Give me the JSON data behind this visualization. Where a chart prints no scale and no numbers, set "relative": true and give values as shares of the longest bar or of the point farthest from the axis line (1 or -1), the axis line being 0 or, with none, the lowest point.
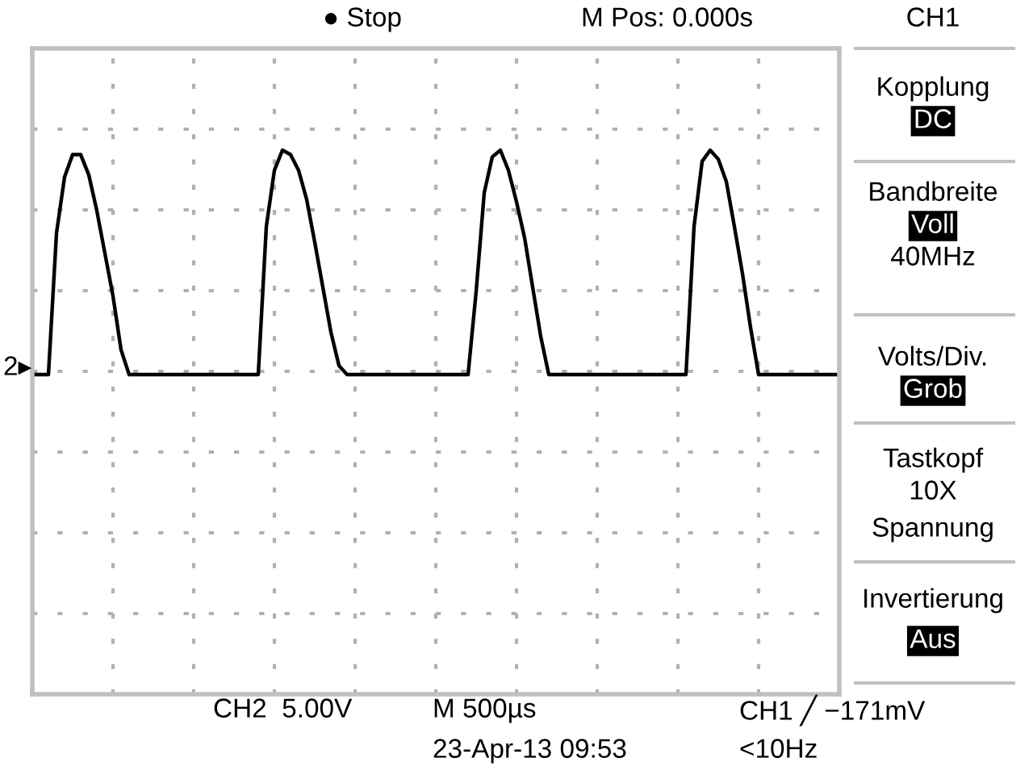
{
  "chart_data": {
    "type": "line",
    "relative": true,
    "grid": true,
    "tick_labels": false,
    "legend": false,
    "marker": "none",
    "line_style": "solid",
    "categories": [
      null,
      null,
      null,
      null,
      null,
      null,
      null,
      null,
      null,
      null,
      null,
      null,
      null,
      null,
      null,
      null,
      null,
      null,
      null,
      null,
      null,
      null,
      null,
      null,
      null,
      null,
      null,
      null,
      null,
      null,
      null,
      null,
      null,
      null,
      null,
      null,
      null,
      null,
      null,
      null,
      null,
      null,
      null,
      null,
      null,
      null,
      null,
      null,
      null,
      null,
      null,
      null,
      null,
      null,
      null,
      null,
      null,
      null,
      null,
      null,
      null,
      null,
      null,
      null,
      null,
      null,
      null,
      null,
      null,
      null,
      null,
      null,
      null,
      null,
      null,
      null,
      null,
      null,
      null,
      null,
      null,
      null,
      null,
      null,
      null,
      null,
      null,
      null,
      null,
      null,
      null,
      null,
      null,
      null,
      null,
      null,
      null,
      null,
      null,
      null,
      null
    ],
    "series": [
      {
        "color": "#000000",
        "values": [
          0,
          0,
          0,
          0.63,
          0.88,
          0.98,
          0.98,
          0.89,
          0.73,
          0.54,
          0.35,
          0.11,
          0,
          0,
          0,
          0,
          0,
          0,
          0,
          0,
          0,
          0,
          0,
          0,
          0,
          0,
          0,
          0,
          0,
          0.66,
          0.91,
          1.0,
          0.98,
          0.91,
          0.78,
          0.59,
          0.39,
          0.19,
          0.04,
          0,
          0,
          0,
          0,
          0,
          0,
          0,
          0,
          0,
          0,
          0,
          0,
          0,
          0,
          0,
          0,
          0.37,
          0.81,
          0.97,
          1.0,
          0.91,
          0.77,
          0.61,
          0.39,
          0.17,
          0,
          0,
          0,
          0,
          0,
          0,
          0,
          0,
          0,
          0,
          0,
          0,
          0,
          0,
          0,
          0,
          0,
          0,
          0.66,
          0.95,
          1.0,
          0.96,
          0.86,
          0.66,
          0.45,
          0.21,
          0,
          0,
          0,
          0,
          0,
          0,
          0,
          0,
          0,
          0,
          0
        ]
      }
    ],
    "annotations": [
      "2▸",
      "CH1",
      "Kopplung",
      "DC",
      "Bandbreite",
      "Voll",
      "40MHz",
      "Volts/Div.",
      "Grob",
      "Tastkopf",
      "10X",
      "Spannung",
      "Invertierung",
      "Aus",
      "● Stop",
      "M Pos: 0.000s",
      "CH2  5.00V",
      "M 500µs",
      "CH1 ╱ −171mV",
      "23-Apr-13 09:53",
      "<10Hz"
    ]
  }
}
